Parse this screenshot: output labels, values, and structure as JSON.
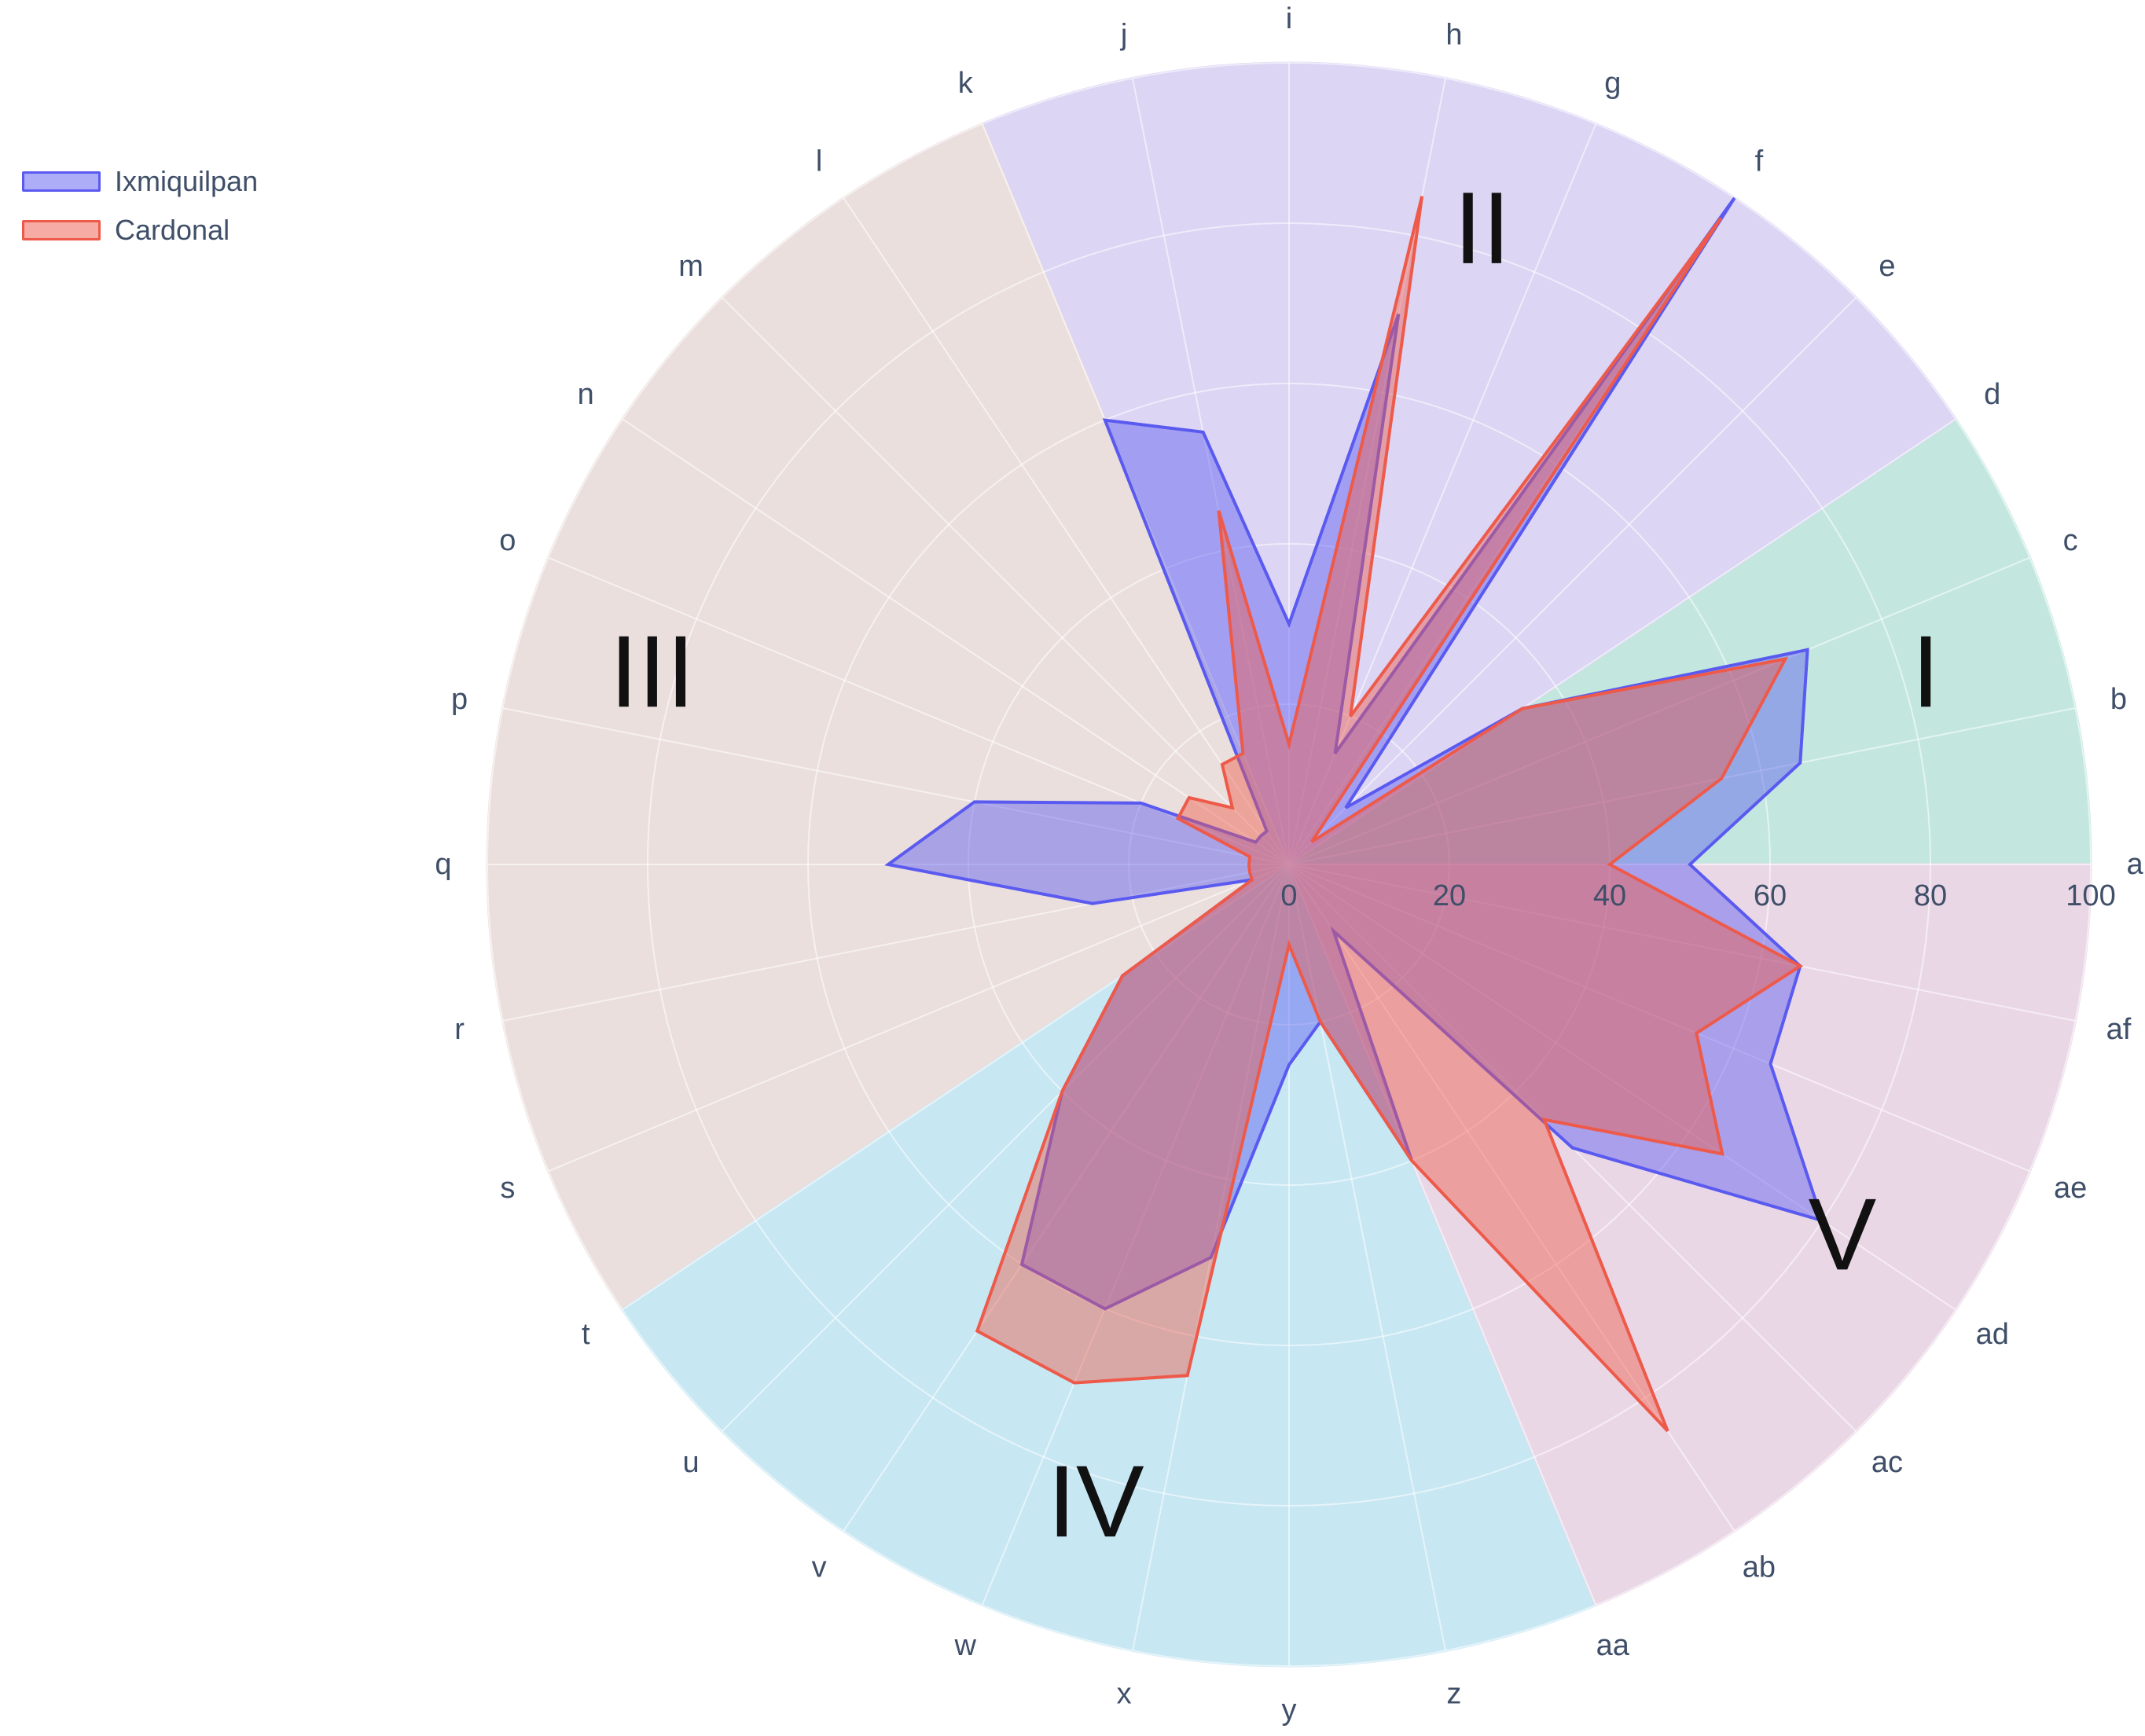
{
  "chart_data": {
    "type": "polar-area",
    "title": "",
    "categories": [
      "a",
      "b",
      "c",
      "d",
      "e",
      "f",
      "g",
      "h",
      "i",
      "j",
      "k",
      "l",
      "m",
      "n",
      "o",
      "p",
      "q",
      "r",
      "s",
      "t",
      "u",
      "v",
      "w",
      "x",
      "y",
      "z",
      "aa",
      "ab",
      "ac",
      "ad",
      "ae",
      "af"
    ],
    "radial_axis": {
      "range": [
        0,
        100
      ],
      "ticks": [
        0,
        20,
        40,
        60,
        80,
        100
      ]
    },
    "sectors": [
      {
        "label": "I",
        "from": "a",
        "to": "d",
        "color": "#c3e7df"
      },
      {
        "label": "II",
        "from": "d",
        "to": "k",
        "color": "#dcd5f4"
      },
      {
        "label": "III",
        "from": "k",
        "to": "t",
        "color": "#eadfdd"
      },
      {
        "label": "IV",
        "from": "t",
        "to": "aa",
        "color": "#c7e7f3"
      },
      {
        "label": "V",
        "from": "aa",
        "to": "a",
        "color": "#ead7e6"
      }
    ],
    "series": [
      {
        "name": "Ixmiquilpan",
        "color": "#5a5af0",
        "values": [
          50,
          65,
          70,
          35,
          10,
          100,
          15,
          70,
          30,
          55,
          60,
          5,
          5,
          5,
          20,
          40,
          50,
          25,
          5,
          25,
          40,
          60,
          60,
          50,
          25,
          20,
          40,
          10,
          50,
          80,
          65,
          65
        ]
      },
      {
        "name": "Cardonal",
        "color": "#ee5a4a",
        "values": [
          40,
          55,
          67,
          35,
          4,
          97,
          20,
          85,
          15,
          45,
          15,
          15,
          10,
          15,
          15,
          5,
          5,
          5,
          5,
          25,
          40,
          70,
          70,
          65,
          10,
          20,
          40,
          85,
          45,
          65,
          55,
          65
        ]
      }
    ],
    "legend": {
      "position": "top-left"
    }
  }
}
